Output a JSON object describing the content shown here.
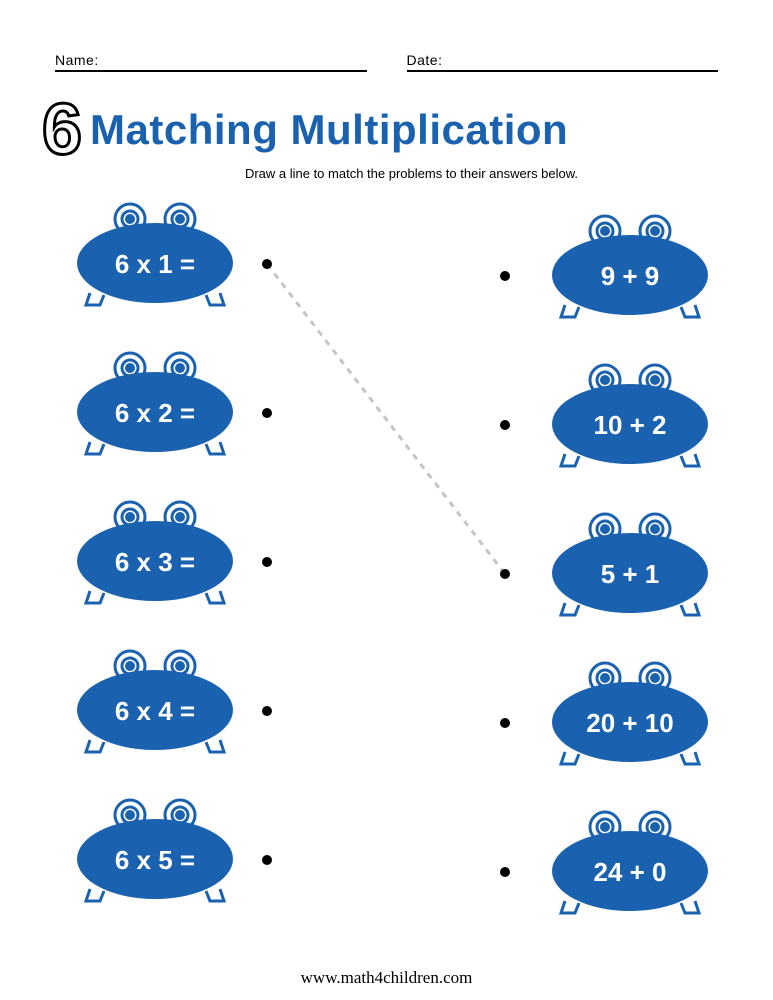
{
  "header": {
    "name_label": "Name:",
    "date_label": "Date:"
  },
  "title": {
    "number": "6",
    "text": "Matching Multiplication"
  },
  "instructions": "Draw a line to match the problems to their answers below.",
  "colors": {
    "frog_blue": "#1a62af",
    "title_blue": "#1a62af",
    "dash_gray": "#c5c5c5"
  },
  "left_items": [
    {
      "label": "6 x 1 ="
    },
    {
      "label": "6 x 2 ="
    },
    {
      "label": "6 x 3 ="
    },
    {
      "label": "6 x 4 ="
    },
    {
      "label": "6 x 5 ="
    }
  ],
  "right_items": [
    {
      "label": "9 + 9"
    },
    {
      "label": "10 + 2"
    },
    {
      "label": "5 + 1"
    },
    {
      "label": "20 + 10"
    },
    {
      "label": "24 + 0"
    }
  ],
  "example_line": {
    "from_row": 0,
    "to_row": 2
  },
  "footer": "www.math4children.com"
}
